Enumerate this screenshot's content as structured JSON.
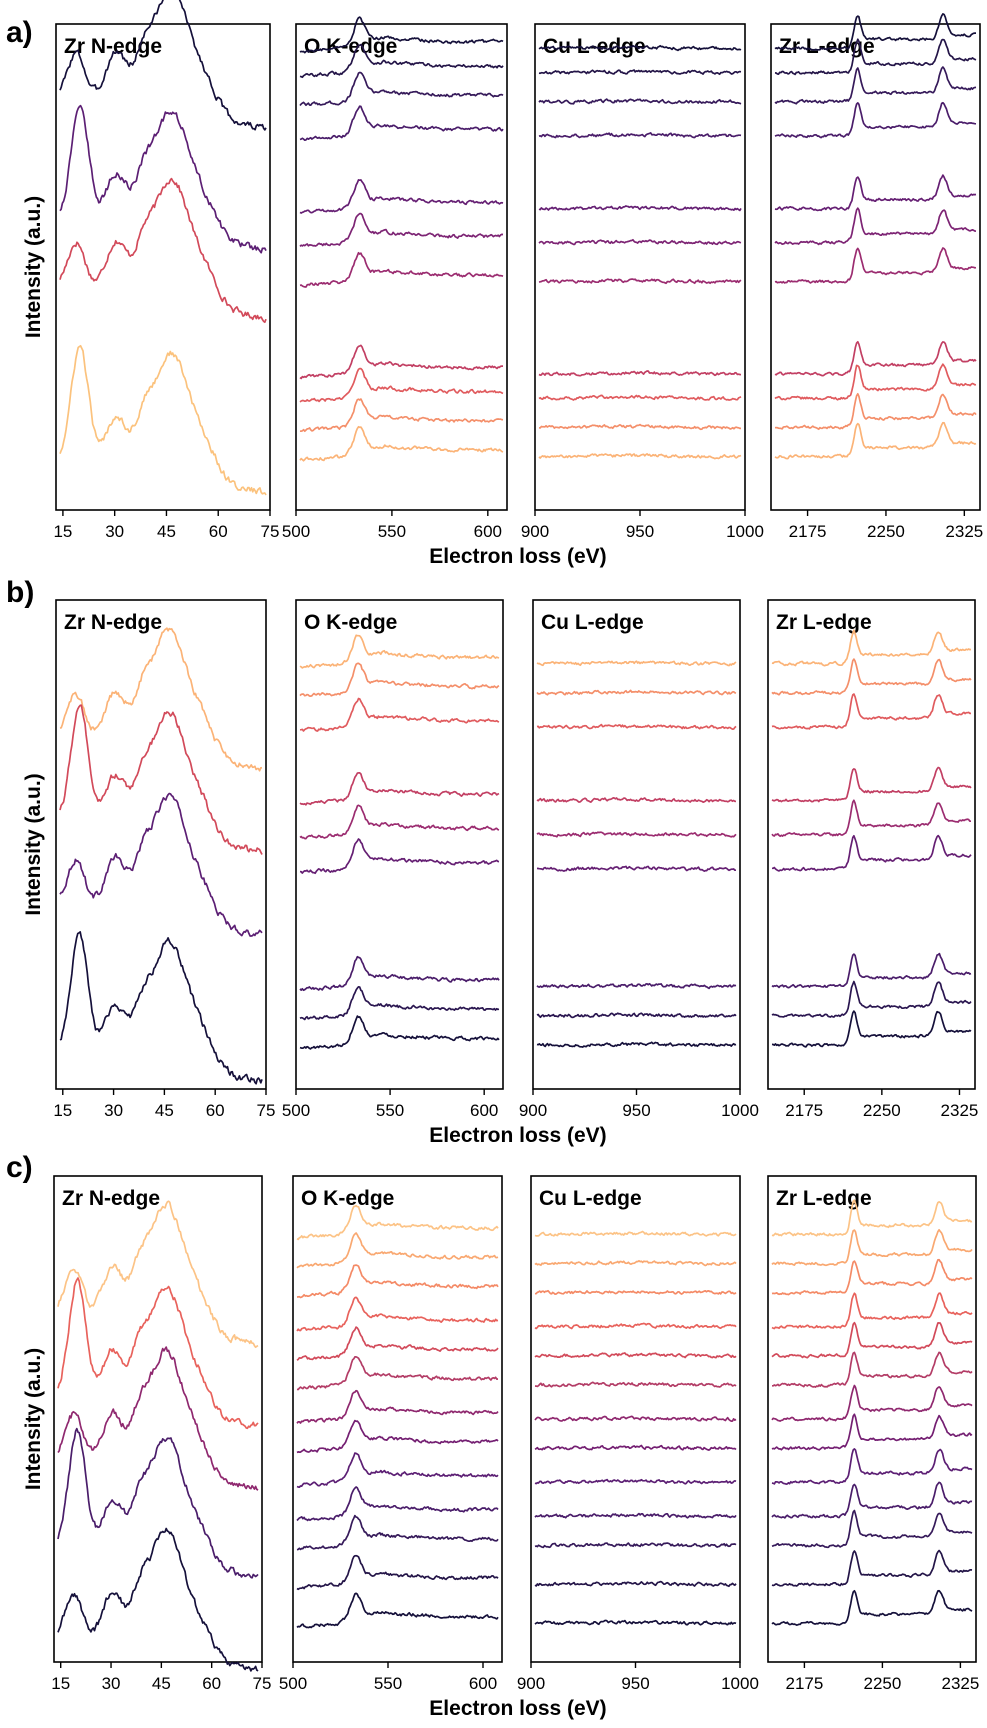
{
  "chart_data": [
    {
      "panel": "a)",
      "type": "line",
      "ylabel": "Intensity (a.u.)",
      "xlabel": "Electron loss (eV)",
      "subplots": [
        {
          "title": "Zr N-edge",
          "xlim": [
            13,
            75
          ],
          "xticks": [
            15,
            30,
            45,
            60,
            75
          ],
          "offsets": [
            0.85,
            0.6,
            0.46,
            0.1
          ],
          "colors": [
            "#15103a",
            "#5c1f74",
            "#d24a5a",
            "#fbc27d"
          ]
        },
        {
          "title": "O K-edge",
          "xlim": [
            500,
            610
          ],
          "xticks": [
            500,
            550,
            600
          ],
          "offsets": [
            0.95,
            0.9,
            0.84,
            0.77,
            0.62,
            0.55,
            0.47,
            0.28,
            0.23,
            0.17,
            0.11
          ],
          "colors": [
            "#15103a",
            "#241548",
            "#361a5a",
            "#4a1d6a",
            "#651f73",
            "#7d2474",
            "#9b2c70",
            "#c23f63",
            "#e05b5e",
            "#f48f6a",
            "#fbb377"
          ]
        },
        {
          "title": "Cu L-edge",
          "xlim": [
            900,
            1000
          ],
          "xticks": [
            900,
            950,
            1000
          ],
          "offsets": [
            0.95,
            0.9,
            0.84,
            0.77,
            0.62,
            0.55,
            0.47,
            0.28,
            0.23,
            0.17,
            0.11
          ],
          "colors": [
            "#15103a",
            "#241548",
            "#361a5a",
            "#4a1d6a",
            "#651f73",
            "#7d2474",
            "#9b2c70",
            "#c23f63",
            "#e05b5e",
            "#f48f6a",
            "#fbb377"
          ]
        },
        {
          "title": "Zr L-edge",
          "xlim": [
            2140,
            2340
          ],
          "xticks": [
            2175,
            2250,
            2325
          ],
          "offsets": [
            0.95,
            0.9,
            0.84,
            0.77,
            0.62,
            0.55,
            0.47,
            0.28,
            0.23,
            0.17,
            0.11
          ],
          "colors": [
            "#15103a",
            "#241548",
            "#361a5a",
            "#4a1d6a",
            "#651f73",
            "#7d2474",
            "#9b2c70",
            "#c23f63",
            "#e05b5e",
            "#f48f6a",
            "#fbb377"
          ]
        }
      ]
    },
    {
      "panel": "b)",
      "type": "line",
      "ylabel": "Intensity (a.u.)",
      "xlabel": "Electron loss (eV)",
      "subplots": [
        {
          "title": "Zr N-edge",
          "xlim": [
            13,
            75
          ],
          "xticks": [
            15,
            30,
            45,
            60,
            75
          ],
          "offsets": [
            0.72,
            0.55,
            0.38,
            0.08
          ],
          "colors": [
            "#fbb377",
            "#d24a5a",
            "#5c1f74",
            "#15103a"
          ]
        },
        {
          "title": "O K-edge",
          "xlim": [
            500,
            610
          ],
          "xticks": [
            500,
            550,
            600
          ],
          "offsets": [
            0.87,
            0.81,
            0.74,
            0.59,
            0.52,
            0.45,
            0.21,
            0.15,
            0.09
          ],
          "colors": [
            "#fbb377",
            "#f48f6a",
            "#e05b5e",
            "#c23f63",
            "#9b2c70",
            "#651f73",
            "#4a1d6a",
            "#2a1650",
            "#15103a"
          ]
        },
        {
          "title": "Cu L-edge",
          "xlim": [
            900,
            1000
          ],
          "xticks": [
            900,
            950,
            1000
          ],
          "offsets": [
            0.87,
            0.81,
            0.74,
            0.59,
            0.52,
            0.45,
            0.21,
            0.15,
            0.09
          ],
          "colors": [
            "#fbb377",
            "#f48f6a",
            "#e05b5e",
            "#c23f63",
            "#9b2c70",
            "#651f73",
            "#4a1d6a",
            "#2a1650",
            "#15103a"
          ]
        },
        {
          "title": "Zr L-edge",
          "xlim": [
            2140,
            2340
          ],
          "xticks": [
            2175,
            2250,
            2325
          ],
          "offsets": [
            0.87,
            0.81,
            0.74,
            0.59,
            0.52,
            0.45,
            0.21,
            0.15,
            0.09
          ],
          "colors": [
            "#fbb377",
            "#f48f6a",
            "#e05b5e",
            "#c23f63",
            "#9b2c70",
            "#651f73",
            "#4a1d6a",
            "#2a1650",
            "#15103a"
          ]
        }
      ]
    },
    {
      "panel": "c)",
      "type": "line",
      "ylabel": "Intensity (a.u.)",
      "xlabel": "Electron loss (eV)",
      "subplots": [
        {
          "title": "Zr N-edge",
          "xlim": [
            13,
            75
          ],
          "xticks": [
            15,
            30,
            45,
            60,
            75
          ],
          "offsets": [
            0.72,
            0.55,
            0.42,
            0.24,
            0.05
          ],
          "colors": [
            "#fcc386",
            "#e8625c",
            "#8f286f",
            "#4a1d6a",
            "#15103a"
          ]
        },
        {
          "title": "O K-edge",
          "xlim": [
            500,
            610
          ],
          "xticks": [
            500,
            550,
            600
          ],
          "offsets": [
            0.88,
            0.82,
            0.76,
            0.69,
            0.63,
            0.57,
            0.5,
            0.44,
            0.37,
            0.3,
            0.24,
            0.16,
            0.08
          ],
          "colors": [
            "#fcc386",
            "#f9a871",
            "#f48a66",
            "#e8625c",
            "#d24a5a",
            "#b33c66",
            "#8f286f",
            "#741f72",
            "#5c1f74",
            "#4a1d6a",
            "#361a5a",
            "#241548",
            "#15103a"
          ]
        },
        {
          "title": "Cu L-edge",
          "xlim": [
            900,
            1000
          ],
          "xticks": [
            900,
            950,
            1000
          ],
          "offsets": [
            0.88,
            0.82,
            0.76,
            0.69,
            0.63,
            0.57,
            0.5,
            0.44,
            0.37,
            0.3,
            0.24,
            0.16,
            0.08
          ],
          "colors": [
            "#fcc386",
            "#f9a871",
            "#f48a66",
            "#e8625c",
            "#d24a5a",
            "#b33c66",
            "#8f286f",
            "#741f72",
            "#5c1f74",
            "#4a1d6a",
            "#361a5a",
            "#241548",
            "#15103a"
          ]
        },
        {
          "title": "Zr L-edge",
          "xlim": [
            2140,
            2340
          ],
          "xticks": [
            2175,
            2250,
            2325
          ],
          "offsets": [
            0.88,
            0.82,
            0.76,
            0.69,
            0.63,
            0.57,
            0.5,
            0.44,
            0.37,
            0.3,
            0.24,
            0.16,
            0.08
          ],
          "colors": [
            "#fcc386",
            "#f9a871",
            "#f48a66",
            "#e8625c",
            "#d24a5a",
            "#b33c66",
            "#8f286f",
            "#741f72",
            "#5c1f74",
            "#4a1d6a",
            "#361a5a",
            "#241548",
            "#15103a"
          ]
        }
      ]
    }
  ]
}
